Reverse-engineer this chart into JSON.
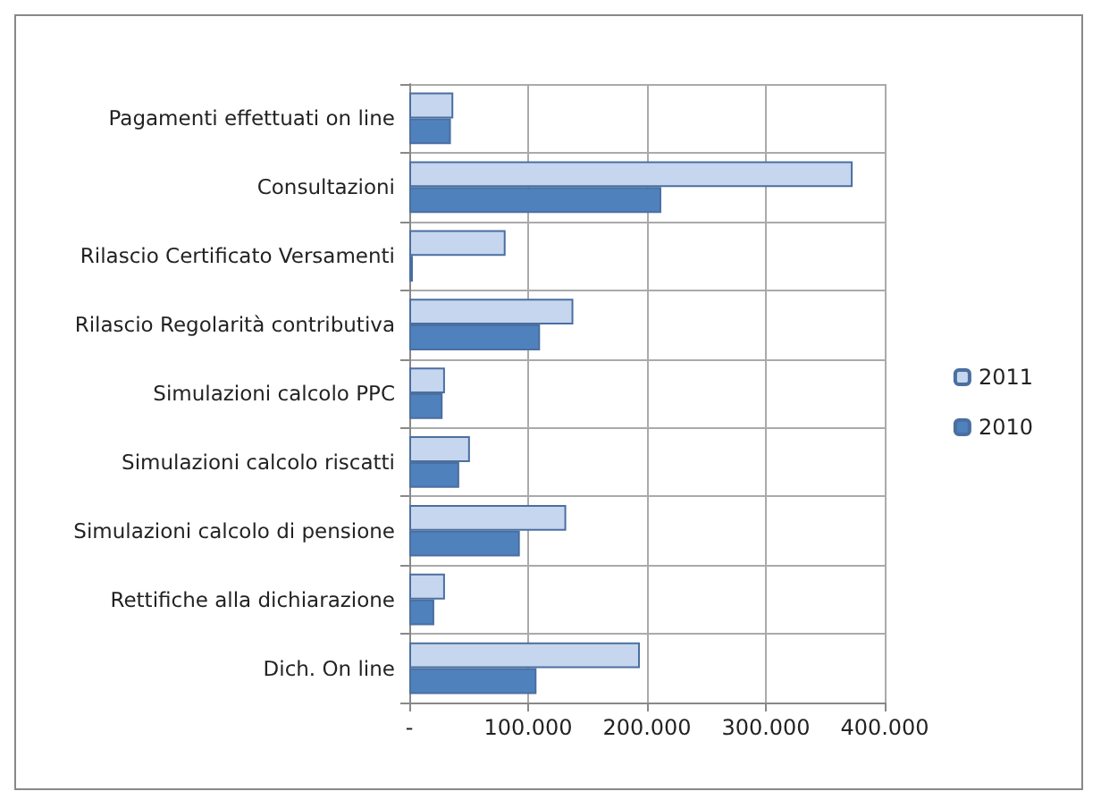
{
  "chart_data": {
    "type": "bar",
    "orientation": "horizontal",
    "categories": [
      "Pagamenti effettuati on line",
      "Consultazioni",
      "Rilascio Certificato Versamenti",
      "Rilascio Regolarità contributiva",
      "Simulazioni calcolo PPC",
      "Simulazioni calcolo riscatti",
      "Simulazioni calcolo di pensione",
      "Rettifiche alla dichiarazione",
      "Dich. On line"
    ],
    "series": [
      {
        "name": "2011",
        "color": "#c6d6ee",
        "values": [
          37000,
          373000,
          81000,
          138000,
          30000,
          51000,
          132000,
          30000,
          194000
        ]
      },
      {
        "name": "2010",
        "color": "#4f81bd",
        "values": [
          35000,
          212000,
          3000,
          110000,
          28000,
          42000,
          93000,
          21000,
          107000
        ]
      }
    ],
    "xlim": [
      0,
      400000
    ],
    "xticks": [
      {
        "value": 0,
        "label": "-"
      },
      {
        "value": 100000,
        "label": "100.000"
      },
      {
        "value": 200000,
        "label": "200.000"
      },
      {
        "value": 300000,
        "label": "300.000"
      },
      {
        "value": 400000,
        "label": "400.000"
      }
    ],
    "grid": true,
    "legend": "right"
  }
}
